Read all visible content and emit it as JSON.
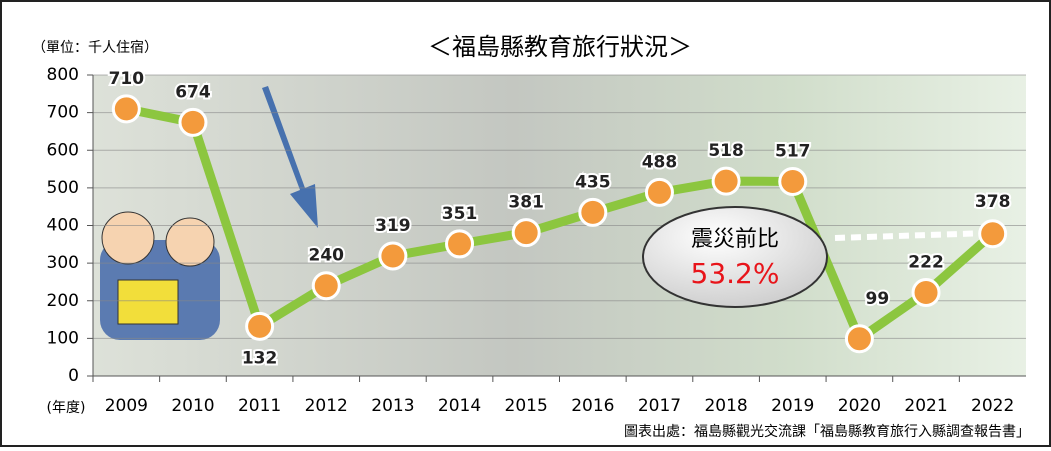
{
  "chart_data": {
    "type": "line",
    "title": "＜福島縣教育旅行狀況＞",
    "unit_label": "（單位：千人住宿）",
    "x_label": "(年度)",
    "source": "圖表出處：福島縣觀光交流課「福島縣教育旅行入縣調查報告書」",
    "annotation": {
      "title": "震災前比",
      "value": "53.2%"
    },
    "categories": [
      "2009",
      "2010",
      "2011",
      "2012",
      "2013",
      "2014",
      "2015",
      "2016",
      "2017",
      "2018",
      "2019",
      "2020",
      "2021",
      "2022"
    ],
    "series": [
      {
        "color": "#8cc63f",
        "marker_color": "#f39a3c",
        "values": [
          710,
          674,
          132,
          240,
          319,
          351,
          381,
          435,
          488,
          518,
          517,
          99,
          222,
          378
        ]
      }
    ],
    "ylim": [
      0,
      800
    ],
    "yticks": [
      0,
      100,
      200,
      300,
      400,
      500,
      600,
      700,
      800
    ],
    "grid": true
  }
}
